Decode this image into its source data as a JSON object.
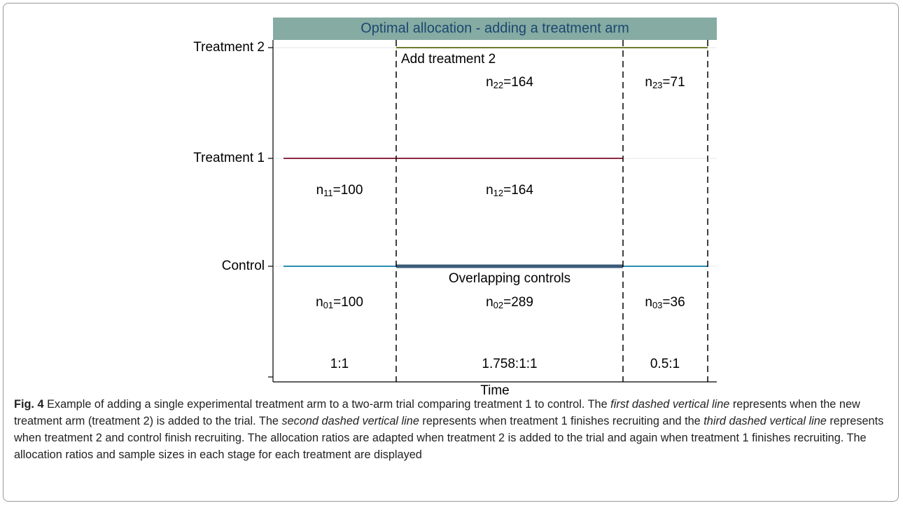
{
  "figure": {
    "title": "Optimal allocation - adding a treatment arm",
    "y_labels": [
      "Treatment 2",
      "Treatment 1",
      "Control"
    ],
    "x_label": "Time",
    "annotations": [
      "Add treatment 2",
      "Overlapping controls"
    ],
    "cells": [
      {
        "n": "n",
        "sub": "22",
        "rest": "=164"
      },
      {
        "n": "n",
        "sub": "23",
        "rest": "=71"
      },
      {
        "n": "n",
        "sub": "11",
        "rest": "=100"
      },
      {
        "n": "n",
        "sub": "12",
        "rest": "=164"
      },
      {
        "n": "n",
        "sub": "01",
        "rest": "=100"
      },
      {
        "n": "n",
        "sub": "02",
        "rest": "=289"
      },
      {
        "n": "n",
        "sub": "03",
        "rest": "=36"
      }
    ],
    "ratios": [
      "1:1",
      "1.758:1:1",
      "0.5:1"
    ]
  },
  "caption": {
    "label": "Fig. 4",
    "parts": [
      "Example of adding a single experimental treatment arm to a two-arm trial comparing treatment 1 to control. The ",
      "first dashed vertical line",
      " represents when the new treatment arm (treatment 2) is added to the trial. The ",
      "second dashed vertical line",
      " represents when treatment 1 finishes recruiting and the ",
      "third dashed vertical line",
      " represents when treatment 2 and control finish recruiting. The allocation ratios are adapted when treatment 2 is added to the trial and again when treatment 1 finishes recruiting. The allocation ratios and sample sizes in each stage for each treatment are displayed"
    ]
  }
}
